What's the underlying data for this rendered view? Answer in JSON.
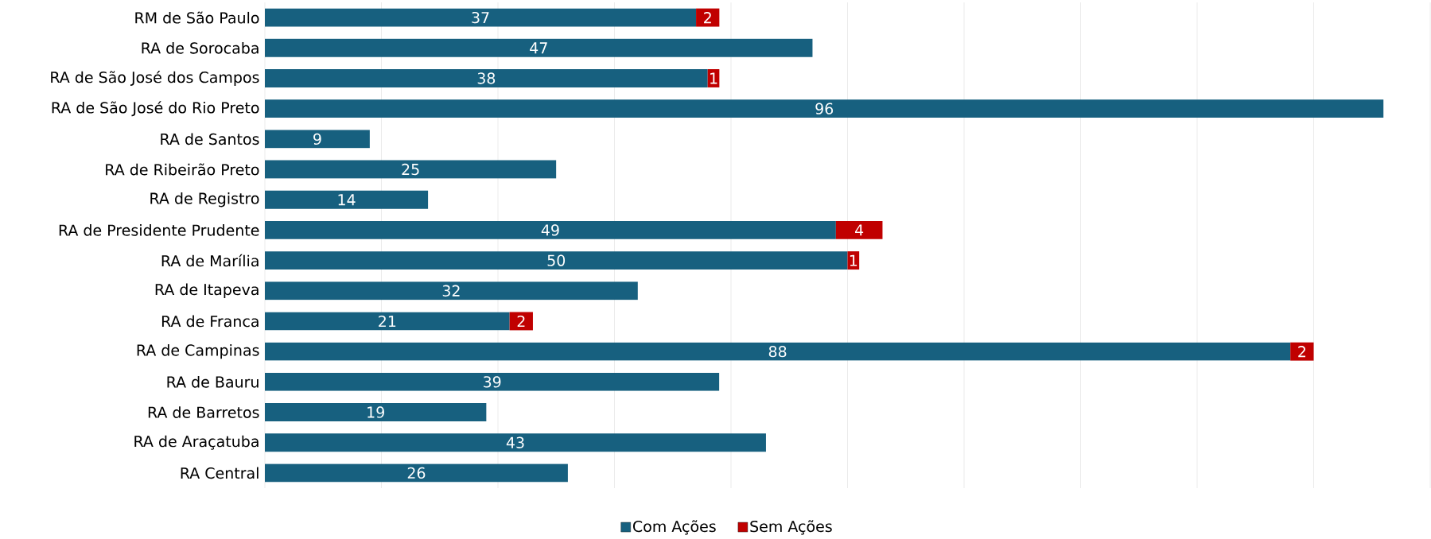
{
  "chart_data": {
    "type": "bar",
    "orientation": "horizontal",
    "stacked": true,
    "data_labels": true,
    "grid": "x",
    "legend": "bottom",
    "tick_labels": "y",
    "categories": [
      "RM de São Paulo",
      "RA de Sorocaba",
      "RA de São José dos Campos",
      "RA de São José do Rio Preto",
      "RA de Santos",
      "RA de Ribeirão Preto",
      "RA de Registro",
      "RA de Presidente Prudente",
      "RA de Marília",
      "RA de Itapeva",
      "RA de Franca",
      "RA de Campinas",
      "RA de Bauru",
      "RA de Barretos",
      "RA de Araçatuba",
      "RA Central"
    ],
    "series": [
      {
        "name": "Com Ações",
        "color": "#17607f",
        "values": [
          37,
          47,
          38,
          96,
          9,
          25,
          14,
          49,
          50,
          32,
          21,
          88,
          39,
          19,
          43,
          26
        ]
      },
      {
        "name": "Sem Ações",
        "color": "#c00000",
        "values": [
          2,
          null,
          1,
          null,
          null,
          null,
          null,
          4,
          1,
          null,
          2,
          2,
          null,
          null,
          null,
          null
        ]
      }
    ],
    "xlim": [
      0,
      100
    ],
    "xticks": [
      {
        "value": 0,
        "label": null
      },
      {
        "value": 10,
        "label": null
      },
      {
        "value": 20,
        "label": null
      },
      {
        "value": 30,
        "label": null
      },
      {
        "value": 40,
        "label": null
      },
      {
        "value": 50,
        "label": null
      },
      {
        "value": 60,
        "label": null
      },
      {
        "value": 70,
        "label": null
      },
      {
        "value": 80,
        "label": null
      },
      {
        "value": 90,
        "label": null
      },
      {
        "value": 100,
        "label": null
      }
    ]
  }
}
